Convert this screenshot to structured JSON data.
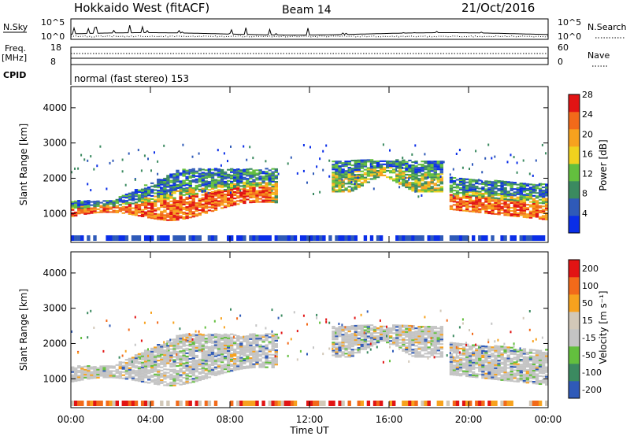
{
  "header": {
    "title": "Hokkaido West (fitACF)",
    "beam": "Beam 14",
    "date": "21/Oct/2016"
  },
  "status": {
    "nsky_label": "N.Sky",
    "nsky_ticks": [
      "10^5",
      "10^0"
    ],
    "nsearch_label": "N.Search",
    "nsearch_ticks": [
      "10^5",
      "10^0"
    ],
    "freq_label": "Freq.",
    "freq_unit": "[MHz]",
    "freq_ticks": [
      "18",
      "8"
    ],
    "nave_label": "Nave",
    "nave_ticks": [
      "60",
      "0"
    ],
    "cpid_label": "CPID",
    "cpid_value": "normal (fast stereo) 153"
  },
  "colors": {
    "power": [
      "#0a2ee8",
      "#2f5ab8",
      "#3b8a60",
      "#63bf3e",
      "#f0d21e",
      "#f7a21e",
      "#f26a1a",
      "#e21414"
    ],
    "velocity": [
      "#e21414",
      "#f26a1a",
      "#f7a21e",
      "#d2c8b8",
      "#c4c4c4",
      "#63bf3e",
      "#3b8a60",
      "#2f5ab8"
    ]
  },
  "chart_data": [
    {
      "type": "heatmap",
      "name": "power",
      "ylabel": "Slant Range [km]",
      "ylim": [
        180,
        4600
      ],
      "yticks": [
        "1000",
        "2000",
        "3000",
        "4000"
      ],
      "xlim": [
        0,
        24
      ],
      "x_ticks": [
        "00:00",
        "04:00",
        "08:00",
        "12:00",
        "16:00",
        "20:00",
        "00:00"
      ],
      "colorbar": {
        "label": "Power [dB]",
        "ticks": [
          "4",
          "8",
          "12",
          "16",
          "20",
          "24",
          "28"
        ],
        "range": [
          0,
          30
        ]
      },
      "regions": [
        {
          "x_start": 0.0,
          "x_end": 10.4,
          "y_bottom": 800,
          "y_top": 1500,
          "level": "high"
        },
        {
          "x_start": 2.0,
          "x_end": 10.5,
          "y_bottom": 1500,
          "y_top": 2500,
          "level": "low"
        },
        {
          "x_start": 13.0,
          "x_end": 18.5,
          "y_bottom": 1700,
          "y_top": 2600,
          "level": "mid"
        },
        {
          "x_start": 19.0,
          "x_end": 24.0,
          "y_bottom": 800,
          "y_top": 2100,
          "level": "high"
        },
        {
          "x_start": 0.0,
          "x_end": 24.0,
          "y_bottom": 200,
          "y_top": 350,
          "level": "low"
        }
      ]
    },
    {
      "type": "heatmap",
      "name": "velocity",
      "ylabel": "Slant Range [km]",
      "ylim": [
        180,
        4600
      ],
      "yticks": [
        "1000",
        "2000",
        "3000",
        "4000"
      ],
      "xlim": [
        0,
        24
      ],
      "xlabel": "Time UT",
      "x_ticks": [
        "00:00",
        "04:00",
        "08:00",
        "12:00",
        "16:00",
        "20:00",
        "00:00"
      ],
      "colorbar": {
        "label": "Velocity [m s⁻¹]",
        "ticks": [
          "200",
          "100",
          "50",
          "15",
          "-15",
          "-50",
          "-100",
          "-200"
        ]
      }
    }
  ]
}
